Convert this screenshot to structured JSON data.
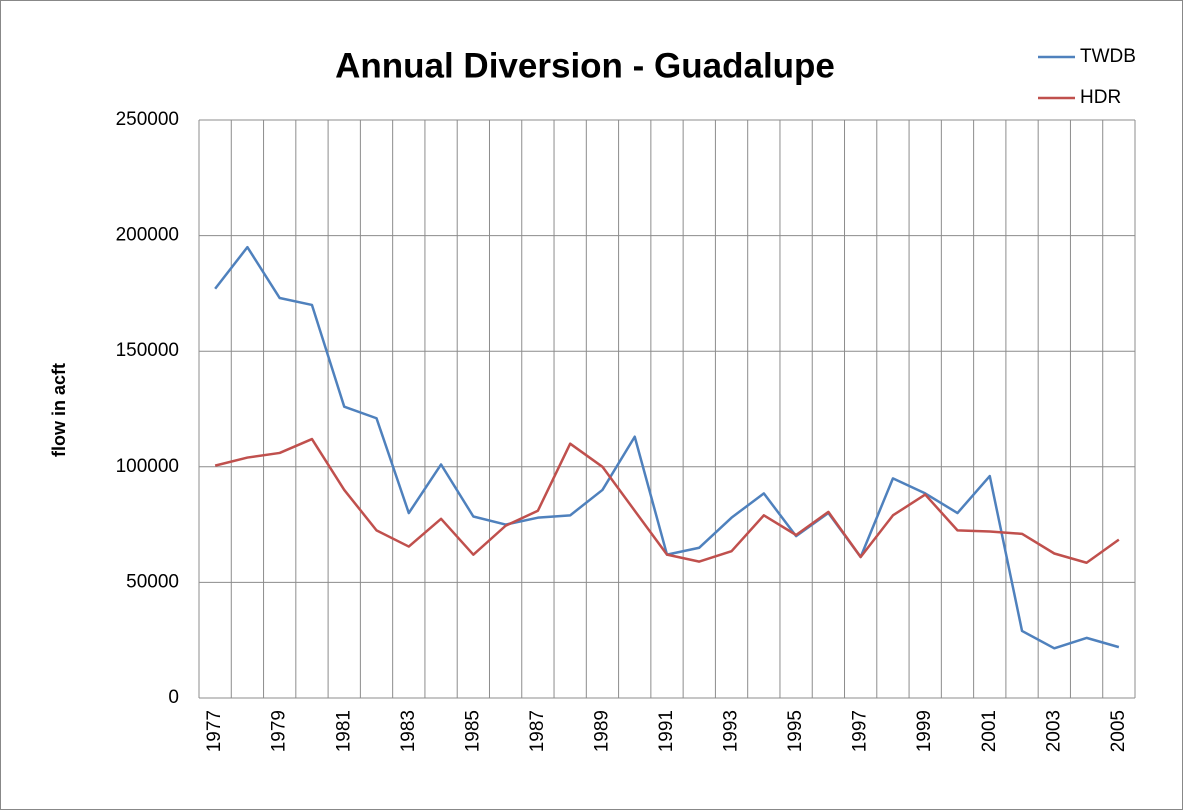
{
  "chart_data": {
    "type": "line",
    "title": "Annual Diversion - Guadalupe",
    "y_label": "flow in acft",
    "categories": [
      "1977",
      null,
      "1979",
      null,
      "1981",
      null,
      "1983",
      null,
      "1985",
      null,
      "1987",
      null,
      "1989",
      null,
      "1991",
      null,
      "1993",
      null,
      "1995",
      null,
      "1997",
      null,
      "1999",
      null,
      "2001",
      null,
      "2003",
      null,
      "2005"
    ],
    "series": [
      {
        "name": "TWDB",
        "color": "#4f81bd",
        "values": [
          177000,
          195000,
          173000,
          170000,
          126000,
          121000,
          80000,
          101000,
          78500,
          75000,
          78000,
          79000,
          90000,
          113000,
          62000,
          65000,
          78000,
          88500,
          70000,
          80000,
          61000,
          95000,
          88500,
          80000,
          96000,
          29000,
          21500,
          26000,
          22000
        ]
      },
      {
        "name": "HDR",
        "color": "#c0504d",
        "values": [
          100500,
          104000,
          106000,
          112000,
          90000,
          72500,
          65500,
          77500,
          62000,
          74500,
          81000,
          110000,
          100000,
          81000,
          62000,
          59000,
          63500,
          79000,
          70500,
          80500,
          61000,
          79000,
          88000,
          72500,
          72000,
          71000,
          62500,
          58500,
          68500
        ]
      }
    ],
    "ylim": [
      0,
      250000
    ],
    "yticks": [
      0,
      50000,
      100000,
      150000,
      200000,
      250000
    ],
    "grid": true,
    "legend": "top-right"
  }
}
